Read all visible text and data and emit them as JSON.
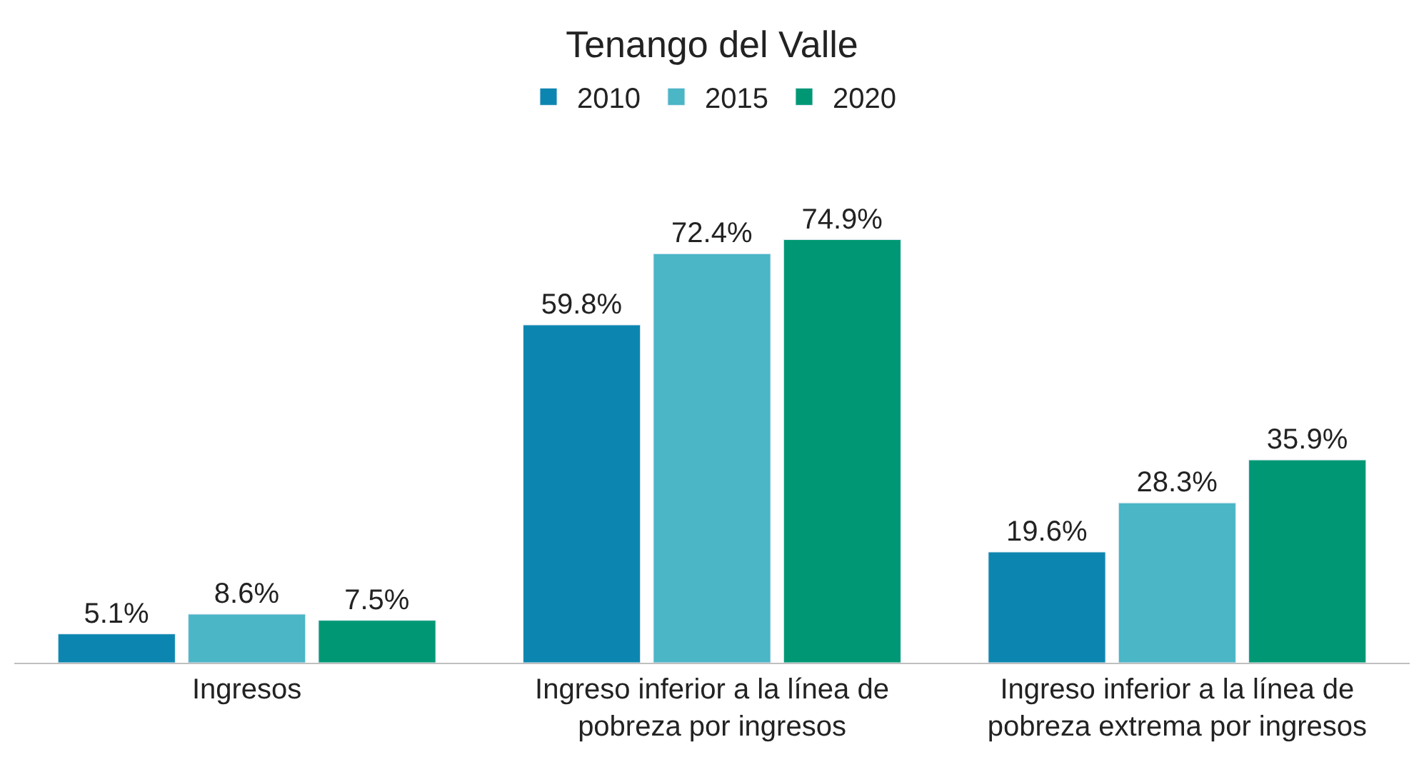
{
  "chart_data": {
    "type": "bar",
    "title": "Tenango del Valle",
    "categories": [
      "Ingresos",
      "Ingreso inferior a la línea de pobreza por ingresos",
      "Ingreso inferior a la línea de pobreza extrema por ingresos"
    ],
    "series": [
      {
        "name": "2010",
        "color": "#0c86b0",
        "values": [
          5.1,
          59.8,
          19.6
        ],
        "value_labels": [
          "5.1%",
          "59.8%",
          "19.6%"
        ]
      },
      {
        "name": "2015",
        "color": "#4ab6c6",
        "values": [
          8.6,
          72.4,
          28.3
        ],
        "value_labels": [
          "8.6%",
          "72.4%",
          "28.3%"
        ]
      },
      {
        "name": "2020",
        "color": "#009874",
        "values": [
          7.5,
          74.9,
          35.9
        ],
        "value_labels": [
          "7.5%",
          "74.9%",
          "35.9%"
        ]
      }
    ],
    "legend": "top"
  }
}
